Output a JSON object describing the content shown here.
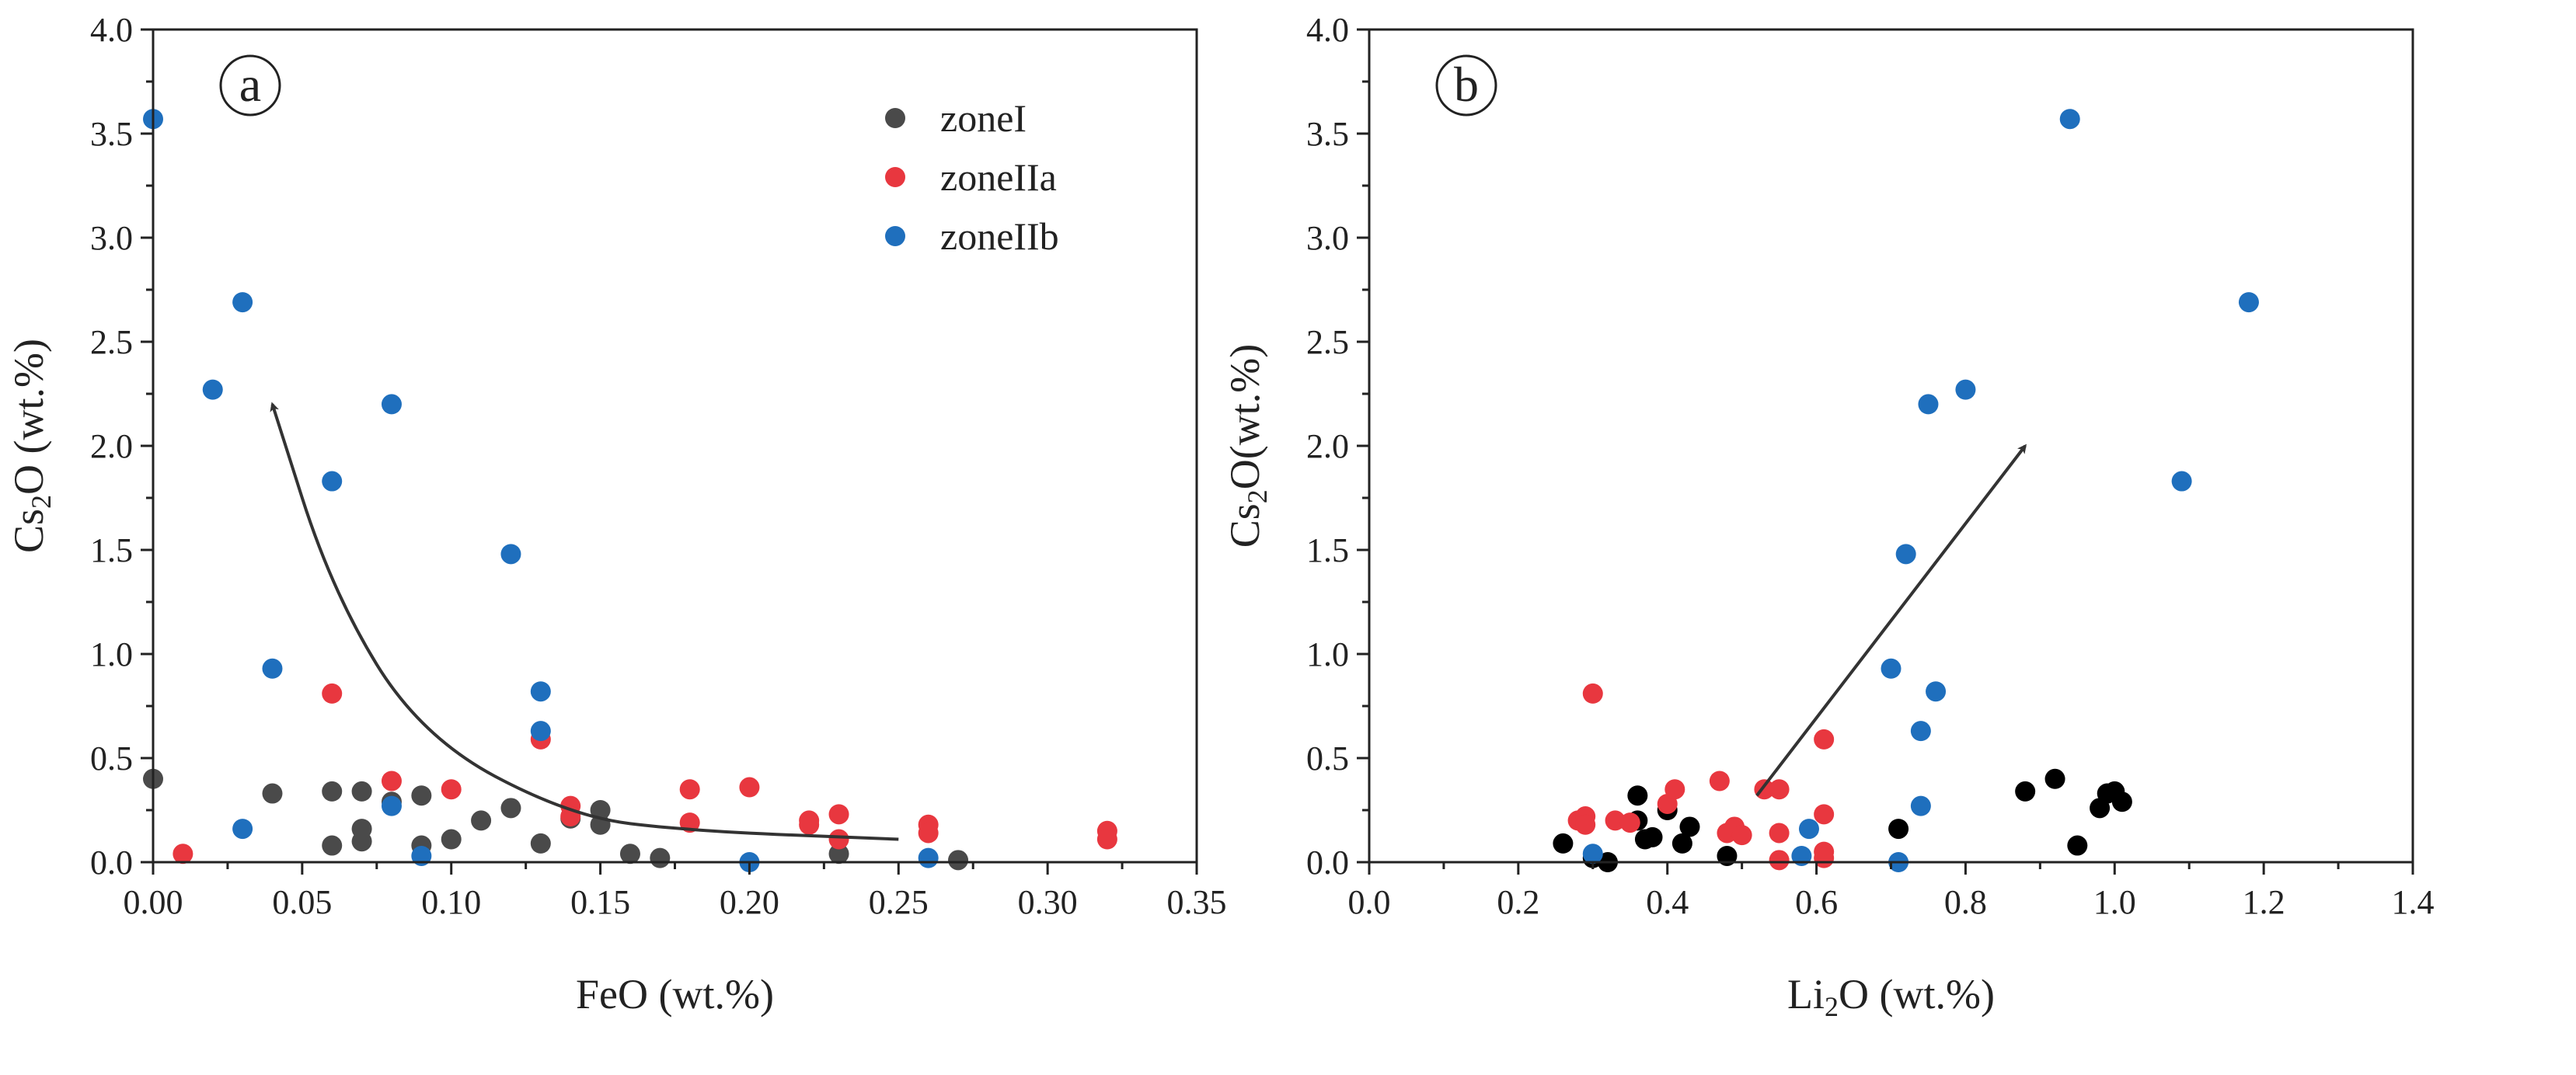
{
  "colors": {
    "zoneI": "#4a4a4a",
    "zoneI_b": "#000000",
    "zoneIIa": "#e8373f",
    "zoneIIb": "#1f6fbd",
    "axis": "#222222",
    "arrow": "#333333"
  },
  "chart_data": [
    {
      "type": "scatter",
      "panel_label": "a",
      "xlabel_main": "FeO (wt.%)",
      "ylabel": {
        "pre": "Cs",
        "sub": "2",
        "post": "O (wt.%)"
      },
      "xlim": [
        0,
        0.35
      ],
      "ylim": [
        0,
        4.0
      ],
      "x_ticks": [
        "0.00",
        "0.05",
        "0.10",
        "0.15",
        "0.20",
        "0.25",
        "0.30",
        "0.35"
      ],
      "x_tick_values": [
        0,
        0.05,
        0.1,
        0.15,
        0.2,
        0.25,
        0.3,
        0.35
      ],
      "y_ticks": [
        "0.0",
        "0.5",
        "1.0",
        "1.5",
        "2.0",
        "2.5",
        "3.0",
        "3.5",
        "4.0"
      ],
      "y_tick_values": [
        0,
        0.5,
        1.0,
        1.5,
        2.0,
        2.5,
        3.0,
        3.5,
        4.0
      ],
      "legend": [
        {
          "name": "zoneI",
          "color_key": "zoneI"
        },
        {
          "name": "zoneIIa",
          "color_key": "zoneIIa"
        },
        {
          "name": "zoneIIb",
          "color_key": "zoneIIb"
        }
      ],
      "legend_position": "top-right",
      "arrow_curve": [
        [
          0.25,
          0.11
        ],
        [
          0.18,
          0.15
        ],
        [
          0.14,
          0.22
        ],
        [
          0.09,
          0.6
        ],
        [
          0.06,
          1.3
        ],
        [
          0.04,
          2.2
        ]
      ],
      "series": [
        {
          "name": "zoneI",
          "color_key": "zoneI",
          "points": [
            [
              0.0,
              0.4
            ],
            [
              0.04,
              0.33
            ],
            [
              0.06,
              0.34
            ],
            [
              0.06,
              0.08
            ],
            [
              0.07,
              0.34
            ],
            [
              0.07,
              0.16
            ],
            [
              0.07,
              0.1
            ],
            [
              0.08,
              0.29
            ],
            [
              0.09,
              0.32
            ],
            [
              0.09,
              0.08
            ],
            [
              0.1,
              0.11
            ],
            [
              0.11,
              0.2
            ],
            [
              0.12,
              0.26
            ],
            [
              0.13,
              0.09
            ],
            [
              0.14,
              0.21
            ],
            [
              0.15,
              0.25
            ],
            [
              0.15,
              0.18
            ],
            [
              0.16,
              0.04
            ],
            [
              0.17,
              0.02
            ],
            [
              0.23,
              0.04
            ],
            [
              0.27,
              0.01
            ]
          ]
        },
        {
          "name": "zoneIIa",
          "color_key": "zoneIIa",
          "points": [
            [
              0.01,
              0.04
            ],
            [
              0.06,
              0.81
            ],
            [
              0.08,
              0.39
            ],
            [
              0.1,
              0.35
            ],
            [
              0.13,
              0.59
            ],
            [
              0.14,
              0.27
            ],
            [
              0.14,
              0.22
            ],
            [
              0.18,
              0.35
            ],
            [
              0.18,
              0.19
            ],
            [
              0.2,
              0.36
            ],
            [
              0.22,
              0.2
            ],
            [
              0.22,
              0.18
            ],
            [
              0.23,
              0.23
            ],
            [
              0.23,
              0.11
            ],
            [
              0.26,
              0.18
            ],
            [
              0.26,
              0.14
            ],
            [
              0.32,
              0.15
            ],
            [
              0.32,
              0.11
            ]
          ]
        },
        {
          "name": "zoneIIb",
          "color_key": "zoneIIb",
          "points": [
            [
              0.0,
              3.57
            ],
            [
              0.02,
              2.27
            ],
            [
              0.03,
              2.69
            ],
            [
              0.03,
              0.16
            ],
            [
              0.04,
              0.93
            ],
            [
              0.06,
              1.83
            ],
            [
              0.08,
              2.2
            ],
            [
              0.08,
              0.27
            ],
            [
              0.09,
              0.03
            ],
            [
              0.12,
              1.48
            ],
            [
              0.13,
              0.82
            ],
            [
              0.13,
              0.63
            ],
            [
              0.2,
              0.0
            ],
            [
              0.26,
              0.02
            ]
          ]
        }
      ]
    },
    {
      "type": "scatter",
      "panel_label": "b",
      "xlabel": {
        "pre": "Li",
        "sub": "2",
        "post": "O (wt.%)"
      },
      "ylabel": {
        "pre": "Cs",
        "sub": "2",
        "post": "O(wt.%)"
      },
      "xlim": [
        0,
        1.4
      ],
      "ylim": [
        0,
        4.0
      ],
      "x_ticks": [
        "0.0",
        "0.2",
        "0.4",
        "0.6",
        "0.8",
        "1.0",
        "1.2",
        "1.4"
      ],
      "x_tick_values": [
        0,
        0.2,
        0.4,
        0.6,
        0.8,
        1.0,
        1.2,
        1.4
      ],
      "y_ticks": [
        "0.0",
        "0.5",
        "1.0",
        "1.5",
        "2.0",
        "2.5",
        "3.0",
        "3.5",
        "4.0"
      ],
      "y_tick_values": [
        0,
        0.5,
        1.0,
        1.5,
        2.0,
        2.5,
        3.0,
        3.5,
        4.0
      ],
      "arrow_line": [
        [
          0.52,
          0.32
        ],
        [
          0.88,
          2.0
        ]
      ],
      "series": [
        {
          "name": "zoneI",
          "color_key": "zoneI_b",
          "points": [
            [
              0.26,
              0.09
            ],
            [
              0.3,
              0.02
            ],
            [
              0.32,
              0.0
            ],
            [
              0.36,
              0.32
            ],
            [
              0.36,
              0.2
            ],
            [
              0.37,
              0.11
            ],
            [
              0.38,
              0.12
            ],
            [
              0.4,
              0.25
            ],
            [
              0.42,
              0.09
            ],
            [
              0.43,
              0.17
            ],
            [
              0.48,
              0.03
            ],
            [
              0.71,
              0.16
            ],
            [
              0.88,
              0.34
            ],
            [
              0.92,
              0.4
            ],
            [
              0.95,
              0.08
            ],
            [
              0.98,
              0.26
            ],
            [
              0.99,
              0.33
            ],
            [
              1.0,
              0.34
            ],
            [
              1.01,
              0.29
            ]
          ]
        },
        {
          "name": "zoneIIa",
          "color_key": "zoneIIa",
          "points": [
            [
              0.28,
              0.2
            ],
            [
              0.29,
              0.22
            ],
            [
              0.29,
              0.18
            ],
            [
              0.3,
              0.81
            ],
            [
              0.33,
              0.2
            ],
            [
              0.35,
              0.19
            ],
            [
              0.4,
              0.28
            ],
            [
              0.41,
              0.35
            ],
            [
              0.47,
              0.39
            ],
            [
              0.48,
              0.14
            ],
            [
              0.49,
              0.17
            ],
            [
              0.5,
              0.13
            ],
            [
              0.53,
              0.35
            ],
            [
              0.55,
              0.35
            ],
            [
              0.55,
              0.14
            ],
            [
              0.55,
              0.01
            ],
            [
              0.61,
              0.59
            ],
            [
              0.61,
              0.23
            ],
            [
              0.61,
              0.05
            ],
            [
              0.61,
              0.02
            ]
          ]
        },
        {
          "name": "zoneIIb",
          "color_key": "zoneIIb",
          "points": [
            [
              0.3,
              0.04
            ],
            [
              0.58,
              0.03
            ],
            [
              0.59,
              0.16
            ],
            [
              0.7,
              0.93
            ],
            [
              0.71,
              0.0
            ],
            [
              0.72,
              1.48
            ],
            [
              0.74,
              0.63
            ],
            [
              0.74,
              0.27
            ],
            [
              0.75,
              2.2
            ],
            [
              0.76,
              0.82
            ],
            [
              0.8,
              2.27
            ],
            [
              0.94,
              3.57
            ],
            [
              1.09,
              1.83
            ],
            [
              1.18,
              2.69
            ]
          ]
        }
      ]
    }
  ]
}
